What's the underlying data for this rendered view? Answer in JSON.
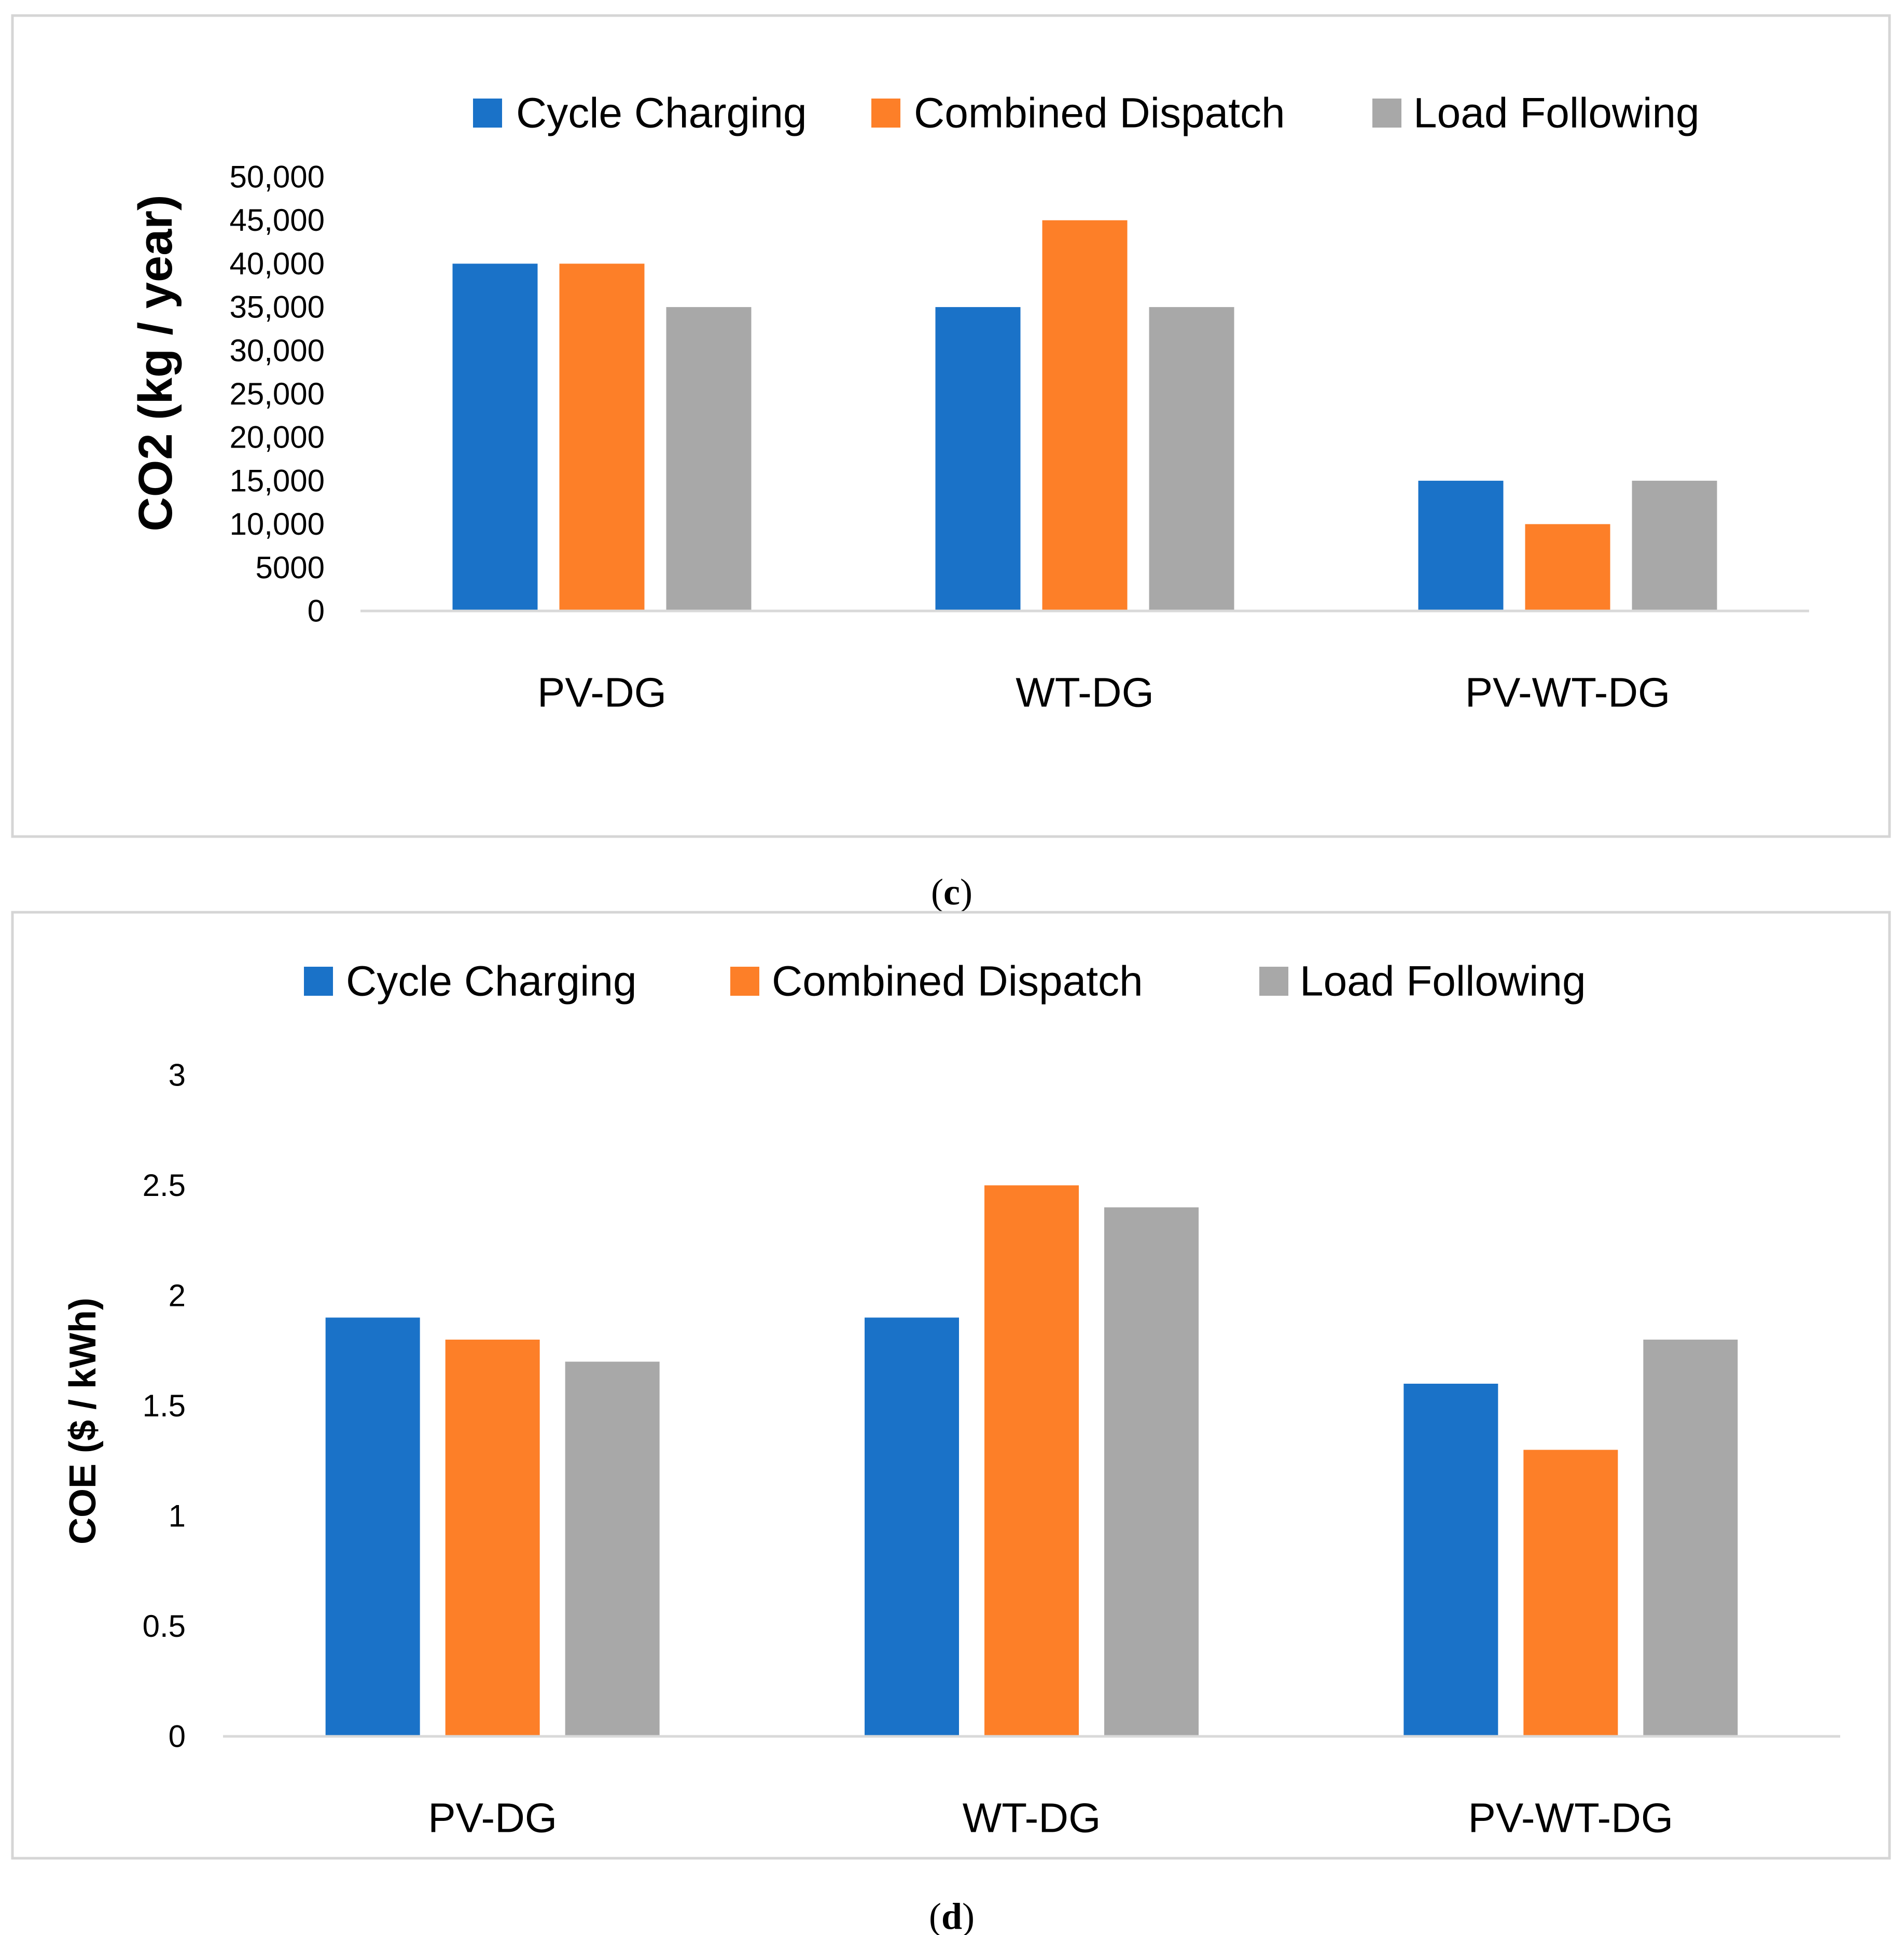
{
  "colors": {
    "cycle_charging": "#1a72c8",
    "combined_dispatch": "#fd7f28",
    "load_following": "#a8a8a8",
    "frame": "#d5d5d5",
    "axis": "#d9d9d9",
    "text": "#000000"
  },
  "chart_data": [
    {
      "type": "bar",
      "panel_label": "(c)",
      "panel_letter": "c",
      "title": "",
      "xlabel": "",
      "ylabel": "CO2 (kg / year)",
      "categories": [
        "PV-DG",
        "WT-DG",
        "PV-WT-DG"
      ],
      "ylim": [
        0,
        50000
      ],
      "yticks": [
        0,
        5000,
        10000,
        15000,
        20000,
        25000,
        30000,
        35000,
        40000,
        45000,
        50000
      ],
      "ytick_labels": [
        "0",
        "5000",
        "10,000",
        "15,000",
        "20,000",
        "25,000",
        "30,000",
        "35,000",
        "40,000",
        "45,000",
        "50,000"
      ],
      "legend_position": "top",
      "grid": false,
      "series": [
        {
          "name": "Cycle Charging",
          "color_key": "cycle_charging",
          "values": [
            40000,
            35000,
            15000
          ]
        },
        {
          "name": "Combined Dispatch",
          "color_key": "combined_dispatch",
          "values": [
            40000,
            45000,
            10000
          ]
        },
        {
          "name": "Load Following",
          "color_key": "load_following",
          "values": [
            35000,
            35000,
            15000
          ]
        }
      ]
    },
    {
      "type": "bar",
      "panel_label": "(d)",
      "panel_letter": "d",
      "title": "",
      "xlabel": "",
      "ylabel": "COE  ($ / kWh)",
      "categories": [
        "PV-DG",
        "WT-DG",
        "PV-WT-DG"
      ],
      "ylim": [
        0,
        3
      ],
      "yticks": [
        0,
        0.5,
        1,
        1.5,
        2,
        2.5,
        3
      ],
      "ytick_labels": [
        "0",
        "0.5",
        "1",
        "1.5",
        "2",
        "2.5",
        "3"
      ],
      "legend_position": "top",
      "grid": false,
      "series": [
        {
          "name": "Cycle Charging",
          "color_key": "cycle_charging",
          "values": [
            1.9,
            1.9,
            1.6
          ]
        },
        {
          "name": "Combined Dispatch",
          "color_key": "combined_dispatch",
          "values": [
            1.8,
            2.5,
            1.3
          ]
        },
        {
          "name": "Load Following",
          "color_key": "load_following",
          "values": [
            1.7,
            2.4,
            1.8
          ]
        }
      ]
    }
  ]
}
